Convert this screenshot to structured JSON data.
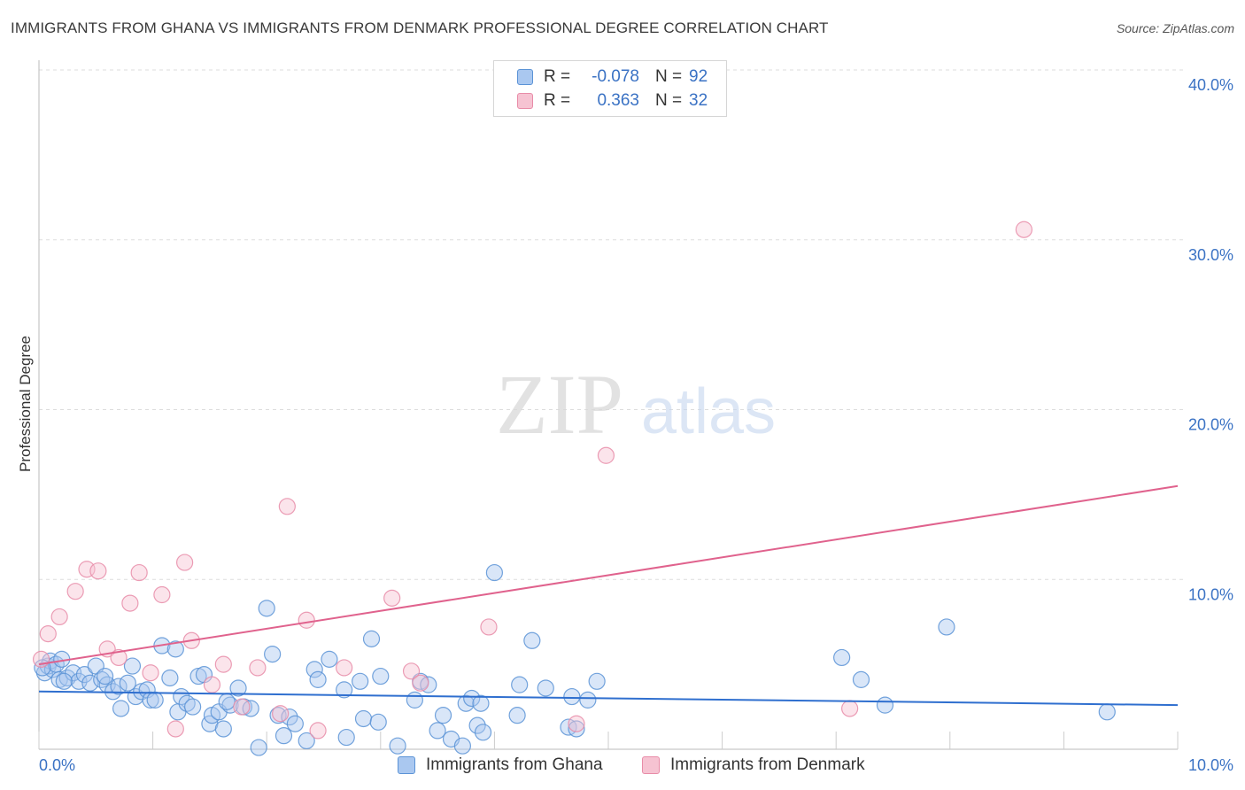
{
  "title": "IMMIGRANTS FROM GHANA VS IMMIGRANTS FROM DENMARK PROFESSIONAL DEGREE CORRELATION CHART",
  "source": "Source: ZipAtlas.com",
  "watermark": {
    "zip": "ZIP",
    "atlas": "atlas"
  },
  "colors": {
    "ghana_fill": "#aac8f0",
    "ghana_stroke": "#5b93d6",
    "ghana_line": "#2f6fcf",
    "denmark_fill": "#f6c3d2",
    "denmark_stroke": "#e88ca8",
    "denmark_line": "#e0628d",
    "tick_text": "#3a72c4",
    "grid": "#dddddd"
  },
  "legend": {
    "rows": [
      {
        "r_label": "R =",
        "r_value": "-0.078",
        "n_label": "N =",
        "n_value": "92"
      },
      {
        "r_label": "R =",
        "r_value": "0.363",
        "n_label": "N =",
        "n_value": "32"
      }
    ]
  },
  "bottom_legend": {
    "ghana": "Immigrants from Ghana",
    "denmark": "Immigrants from Denmark"
  },
  "chart_data": {
    "type": "scatter",
    "title": "IMMIGRANTS FROM GHANA VS IMMIGRANTS FROM DENMARK PROFESSIONAL DEGREE CORRELATION CHART",
    "xlabel": "",
    "ylabel": "Professional Degree",
    "xlim": [
      0,
      10
    ],
    "ylim": [
      0,
      40
    ],
    "x_tick_labels": [
      "0.0%",
      "10.0%"
    ],
    "y_ticks": [
      10,
      20,
      30,
      40
    ],
    "y_tick_labels": [
      "10.0%",
      "20.0%",
      "30.0%",
      "40.0%"
    ],
    "grid": true,
    "legend_position": "top-center",
    "series": [
      {
        "name": "Immigrants from Ghana",
        "trend": {
          "x": [
            0,
            10
          ],
          "y": [
            3.4,
            2.6
          ]
        },
        "points": [
          [
            0.05,
            4.5
          ],
          [
            0.08,
            4.9
          ],
          [
            0.1,
            5.2
          ],
          [
            0.12,
            4.7
          ],
          [
            0.15,
            5.0
          ],
          [
            0.18,
            4.1
          ],
          [
            0.2,
            5.3
          ],
          [
            0.25,
            4.2
          ],
          [
            0.3,
            4.5
          ],
          [
            0.35,
            4.0
          ],
          [
            0.4,
            4.4
          ],
          [
            0.45,
            3.9
          ],
          [
            0.5,
            4.9
          ],
          [
            0.55,
            4.1
          ],
          [
            0.6,
            3.8
          ],
          [
            0.65,
            3.4
          ],
          [
            0.7,
            3.7
          ],
          [
            0.72,
            2.4
          ],
          [
            0.78,
            3.9
          ],
          [
            0.82,
            4.9
          ],
          [
            0.85,
            3.1
          ],
          [
            0.9,
            3.4
          ],
          [
            0.95,
            3.5
          ],
          [
            0.98,
            2.9
          ],
          [
            1.02,
            2.9
          ],
          [
            1.08,
            6.1
          ],
          [
            1.15,
            4.2
          ],
          [
            1.2,
            5.9
          ],
          [
            1.22,
            2.2
          ],
          [
            1.25,
            3.1
          ],
          [
            1.3,
            2.7
          ],
          [
            1.35,
            2.5
          ],
          [
            1.4,
            4.3
          ],
          [
            1.45,
            4.4
          ],
          [
            1.5,
            1.5
          ],
          [
            1.52,
            2.0
          ],
          [
            1.58,
            2.2
          ],
          [
            1.62,
            1.2
          ],
          [
            1.68,
            2.6
          ],
          [
            1.75,
            3.6
          ],
          [
            1.8,
            2.5
          ],
          [
            1.86,
            2.4
          ],
          [
            1.93,
            0.1
          ],
          [
            2.0,
            8.3
          ],
          [
            2.05,
            5.6
          ],
          [
            2.1,
            2.0
          ],
          [
            2.15,
            0.8
          ],
          [
            2.2,
            1.9
          ],
          [
            2.25,
            1.5
          ],
          [
            2.35,
            0.5
          ],
          [
            2.42,
            4.7
          ],
          [
            2.45,
            4.1
          ],
          [
            2.55,
            5.3
          ],
          [
            2.68,
            3.5
          ],
          [
            2.7,
            0.7
          ],
          [
            2.82,
            4.0
          ],
          [
            2.85,
            1.8
          ],
          [
            2.92,
            6.5
          ],
          [
            2.98,
            1.6
          ],
          [
            3.0,
            4.3
          ],
          [
            3.15,
            0.2
          ],
          [
            3.3,
            2.9
          ],
          [
            3.35,
            4.0
          ],
          [
            3.42,
            3.8
          ],
          [
            3.5,
            1.1
          ],
          [
            3.55,
            2.0
          ],
          [
            3.62,
            0.6
          ],
          [
            3.72,
            0.2
          ],
          [
            3.75,
            2.7
          ],
          [
            3.8,
            3.0
          ],
          [
            3.85,
            1.4
          ],
          [
            3.88,
            2.7
          ],
          [
            3.9,
            1.0
          ],
          [
            4.0,
            10.4
          ],
          [
            4.2,
            2.0
          ],
          [
            4.22,
            3.8
          ],
          [
            4.33,
            6.4
          ],
          [
            4.45,
            3.6
          ],
          [
            4.65,
            1.3
          ],
          [
            4.68,
            3.1
          ],
          [
            4.72,
            1.2
          ],
          [
            4.82,
            2.9
          ],
          [
            4.9,
            4.0
          ],
          [
            7.05,
            5.4
          ],
          [
            7.22,
            4.1
          ],
          [
            7.43,
            2.6
          ],
          [
            7.97,
            7.2
          ],
          [
            9.38,
            2.2
          ],
          [
            0.03,
            4.8
          ],
          [
            0.22,
            4.0
          ],
          [
            1.65,
            2.8
          ],
          [
            0.58,
            4.3
          ]
        ]
      },
      {
        "name": "Immigrants from Denmark",
        "trend": {
          "x": [
            0,
            10
          ],
          "y": [
            5.0,
            15.5
          ]
        },
        "points": [
          [
            0.02,
            5.3
          ],
          [
            0.08,
            6.8
          ],
          [
            0.18,
            7.8
          ],
          [
            0.32,
            9.3
          ],
          [
            0.42,
            10.6
          ],
          [
            0.52,
            10.5
          ],
          [
            0.6,
            5.9
          ],
          [
            0.7,
            5.4
          ],
          [
            0.8,
            8.6
          ],
          [
            0.88,
            10.4
          ],
          [
            0.98,
            4.5
          ],
          [
            1.08,
            9.1
          ],
          [
            1.2,
            1.2
          ],
          [
            1.28,
            11.0
          ],
          [
            1.34,
            6.4
          ],
          [
            1.52,
            3.8
          ],
          [
            1.62,
            5.0
          ],
          [
            1.78,
            2.5
          ],
          [
            1.92,
            4.8
          ],
          [
            2.12,
            2.1
          ],
          [
            2.18,
            14.3
          ],
          [
            2.35,
            7.6
          ],
          [
            2.45,
            1.1
          ],
          [
            2.68,
            4.8
          ],
          [
            3.1,
            8.9
          ],
          [
            3.27,
            4.6
          ],
          [
            3.35,
            3.9
          ],
          [
            3.95,
            7.2
          ],
          [
            4.72,
            1.5
          ],
          [
            4.98,
            17.3
          ],
          [
            7.12,
            2.4
          ],
          [
            8.65,
            30.6
          ]
        ]
      }
    ]
  }
}
